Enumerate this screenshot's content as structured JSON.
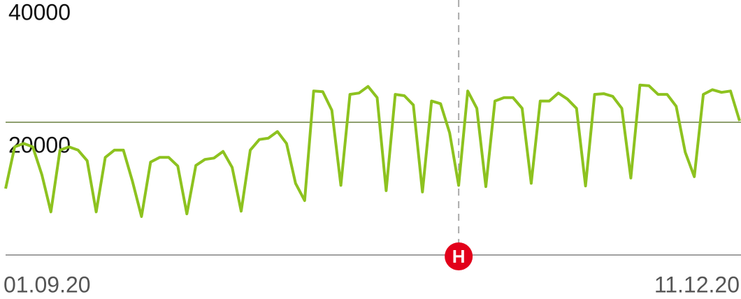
{
  "chart_data": {
    "type": "line",
    "categories": [
      "01.09.20",
      null,
      null,
      null,
      null,
      null,
      null,
      null,
      null,
      null,
      null,
      null,
      null,
      null,
      null,
      null,
      null,
      null,
      null,
      null,
      null,
      null,
      null,
      null,
      null,
      null,
      null,
      null,
      null,
      null,
      null,
      null,
      null,
      null,
      null,
      null,
      null,
      null,
      null,
      null,
      null,
      null,
      null,
      null,
      null,
      null,
      null,
      null,
      null,
      null,
      null,
      null,
      null,
      null,
      null,
      null,
      null,
      null,
      null,
      null,
      null,
      null,
      null,
      null,
      null,
      null,
      null,
      null,
      null,
      null,
      null,
      null,
      null,
      null,
      null,
      null,
      null,
      null,
      null,
      null,
      null,
      "11.12.20"
    ],
    "series": [
      {
        "color": "#8dc21f",
        "values": [
          10000,
          16300,
          16800,
          16300,
          12100,
          6500,
          15800,
          16300,
          15800,
          14200,
          6500,
          14700,
          15800,
          15800,
          11100,
          5800,
          14000,
          14700,
          14700,
          13400,
          6200,
          13500,
          14400,
          14600,
          15600,
          13200,
          6600,
          15800,
          17400,
          17600,
          18600,
          16800,
          10800,
          8200,
          24700,
          24600,
          21800,
          10500,
          24200,
          24400,
          25400,
          23700,
          9700,
          24200,
          24000,
          22600,
          9500,
          23200,
          22800,
          18400,
          10500,
          24700,
          22100,
          10300,
          23200,
          23700,
          23700,
          22100,
          10800,
          23200,
          23200,
          24400,
          23500,
          22100,
          10400,
          24200,
          24300,
          23900,
          22100,
          11600,
          25600,
          25500,
          24200,
          24200,
          22400,
          15500,
          11800,
          24200,
          24900,
          24500,
          24700,
          20200
        ]
      }
    ],
    "ylim": [
      0,
      40000
    ],
    "yticks": [
      20000,
      40000
    ],
    "grid": true,
    "event_marker": {
      "label": "H",
      "category_index": 50
    }
  }
}
